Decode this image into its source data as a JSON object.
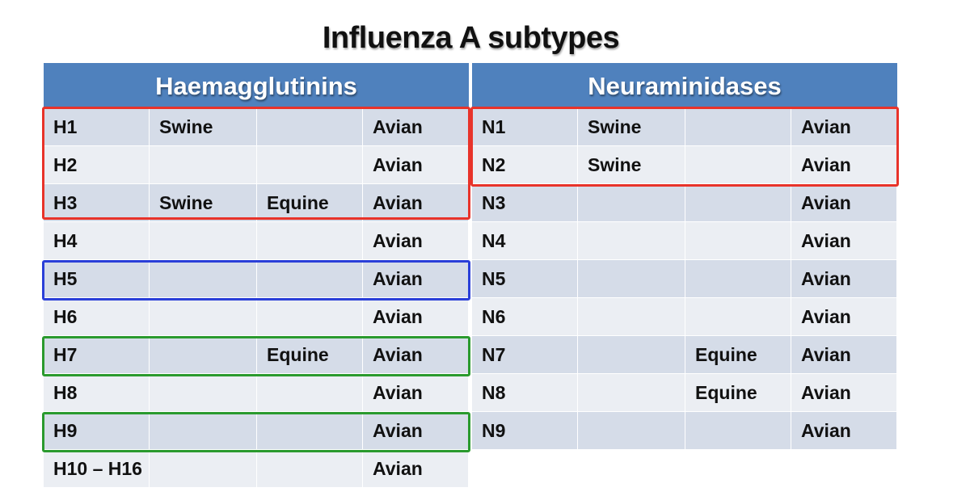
{
  "title": "Influenza A subtypes",
  "headers": {
    "left": "Haemagglutinins",
    "right": "Neuraminidases"
  },
  "haemagglutinins": [
    [
      "H1",
      "Swine",
      "",
      "Avian"
    ],
    [
      "H2",
      "",
      "",
      "Avian"
    ],
    [
      "H3",
      "Swine",
      "Equine",
      "Avian"
    ],
    [
      "H4",
      "",
      "",
      "Avian"
    ],
    [
      "H5",
      "",
      "",
      "Avian"
    ],
    [
      "H6",
      "",
      "",
      "Avian"
    ],
    [
      "H7",
      "",
      "Equine",
      "Avian"
    ],
    [
      "H8",
      "",
      "",
      "Avian"
    ],
    [
      "H9",
      "",
      "",
      "Avian"
    ],
    [
      "H10 – H16",
      "",
      "",
      "Avian"
    ]
  ],
  "neuraminidases": [
    [
      "N1",
      "Swine",
      "",
      "Avian"
    ],
    [
      "N2",
      "Swine",
      "",
      "Avian"
    ],
    [
      "N3",
      "",
      "",
      "Avian"
    ],
    [
      "N4",
      "",
      "",
      "Avian"
    ],
    [
      "N5",
      "",
      "",
      "Avian"
    ],
    [
      "N6",
      "",
      "",
      "Avian"
    ],
    [
      "N7",
      "",
      "Equine",
      "Avian"
    ],
    [
      "N8",
      "",
      "Equine",
      "Avian"
    ],
    [
      "N9",
      "",
      "",
      "Avian"
    ]
  ],
  "highlight_colors": {
    "red": "#e8332a",
    "blue": "#2a3fd8",
    "green": "#2a9a2e"
  }
}
